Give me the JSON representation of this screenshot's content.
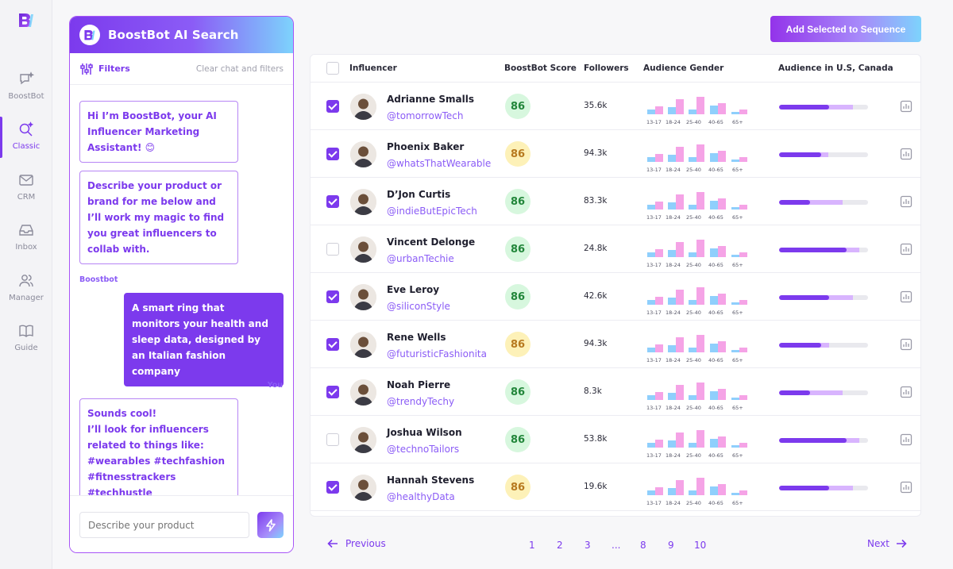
{
  "nav": {
    "items": [
      {
        "label": "BoostBot",
        "icon": "chat-sparkle-icon"
      },
      {
        "label": "Classic",
        "icon": "search-sparkle-icon",
        "active": true
      },
      {
        "label": "CRM",
        "icon": "mail-icon"
      },
      {
        "label": "Inbox",
        "icon": "inbox-icon"
      },
      {
        "label": "Manager",
        "icon": "users-icon"
      },
      {
        "label": "Guide",
        "icon": "book-icon"
      }
    ]
  },
  "chat": {
    "title": "BoostBot AI Search",
    "filters_label": "Filters",
    "clear_label": "Clear chat and filters",
    "messages": [
      {
        "from": "bot",
        "text": "Hi I’m BoostBot, your AI Influencer Marketing Assistant! 😊"
      },
      {
        "from": "bot",
        "text": "Describe your product or brand for me below and I’ll work my magic to find you great influencers to collab with."
      },
      {
        "from": "user",
        "text": "A smart ring that monitors your health and sleep data, designed by an Italian fashion company"
      },
      {
        "from": "bot",
        "text": "Sounds cool!\nI’ll look for influencers related to things like:\n#wearables #techfashion #fitnesstrackers #techhustle"
      }
    ],
    "bot_name": "Boostbot",
    "user_name": "You",
    "input_placeholder": "Describe your product"
  },
  "toolbar": {
    "add_label": "Add Selected to Sequence"
  },
  "table": {
    "columns": {
      "influencer": "Influencer",
      "score": "BoostBot Score",
      "followers": "Followers",
      "gender": "Audience Gender",
      "us": "Audience in U.S, Canada"
    },
    "age_labels": [
      "13-17",
      "18-24",
      "25-40",
      "40-65",
      "65+"
    ],
    "rows": [
      {
        "name": "Adrianne Smalls",
        "handle": "@tomorrowTech",
        "score": "86",
        "score_color": "green",
        "followers": "35.6k",
        "checked": true,
        "us": [
          0.56,
          0.83
        ]
      },
      {
        "name": "Phoenix Baker",
        "handle": "@whatsThatWearable",
        "score": "86",
        "score_color": "yellow",
        "followers": "94.3k",
        "checked": true,
        "us": [
          0.47,
          0.55
        ]
      },
      {
        "name": "D’Jon Curtis",
        "handle": "@indieButEpicTech",
        "score": "86",
        "score_color": "green",
        "followers": "83.3k",
        "checked": true,
        "us": [
          0.35,
          0.71
        ]
      },
      {
        "name": "Vincent Delonge",
        "handle": "@urbanTechie",
        "score": "86",
        "score_color": "green",
        "followers": "24.8k",
        "checked": false,
        "us": [
          0.76,
          0.9
        ]
      },
      {
        "name": "Eve Leroy",
        "handle": "@siliconStyle",
        "score": "86",
        "score_color": "green",
        "followers": "42.6k",
        "checked": true,
        "us": [
          0.56,
          0.83
        ]
      },
      {
        "name": "Rene Wells",
        "handle": "@futuristicFashionita",
        "score": "86",
        "score_color": "yellow",
        "followers": "94.3k",
        "checked": true,
        "us": [
          0.47,
          0.56
        ]
      },
      {
        "name": "Noah Pierre",
        "handle": "@trendyTechy",
        "score": "86",
        "score_color": "green",
        "followers": "8.3k",
        "checked": true,
        "us": [
          0.35,
          0.71
        ]
      },
      {
        "name": "Joshua Wilson",
        "handle": "@technoTailors",
        "score": "86",
        "score_color": "green",
        "followers": "53.8k",
        "checked": false,
        "us": [
          0.76,
          0.9
        ]
      },
      {
        "name": "Hannah Stevens",
        "handle": "@healthyData",
        "score": "86",
        "score_color": "yellow",
        "followers": "19.6k",
        "checked": true,
        "us": [
          0.56,
          0.83
        ]
      }
    ]
  },
  "pagination": {
    "prev_label": "Previous",
    "next_label": "Next",
    "pages": [
      "1",
      "2",
      "3",
      "...",
      "8",
      "9",
      "10"
    ]
  },
  "colors": {
    "accent": "#7c3aed",
    "score_green_bg": "#d7f7de",
    "score_yellow_bg": "#fdf1b8",
    "bar_blue": "#8fcffc",
    "bar_pink": "#f5a3e6"
  }
}
